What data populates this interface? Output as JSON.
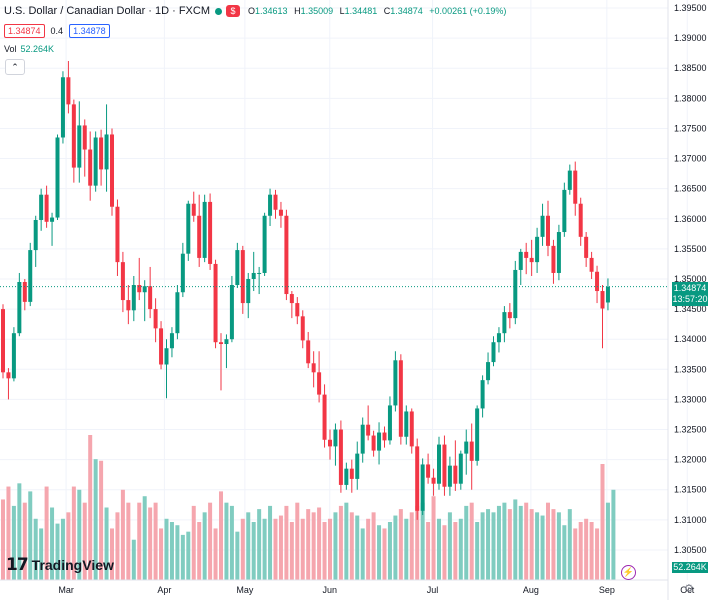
{
  "header": {
    "title": "U.S. Dollar / Canadian Dollar · 1D · FXCM",
    "open_label": "O",
    "open": "1.34613",
    "high_label": "H",
    "high": "1.35009",
    "low_label": "L",
    "low": "1.34481",
    "close_label": "C",
    "close": "1.34874",
    "change": "+0.00261 (+0.19%)",
    "flag": "$"
  },
  "quote": {
    "bid": "1.34874",
    "spread": "0.4",
    "ask": "1.34878"
  },
  "volume": {
    "label": "Vol",
    "value": "52.264K"
  },
  "last_price": {
    "price": "1.34874",
    "countdown": "13:57:20"
  },
  "brand": "TradingView",
  "colors": {
    "up": "#089981",
    "down": "#f23645",
    "vol_up": "#80ccc0",
    "vol_down": "#f5a6ae"
  },
  "chart_data": {
    "type": "candlestick",
    "title": "U.S. Dollar / Canadian Dollar · 1D · FXCM",
    "y_ticks": [
      "1.39500",
      "1.39000",
      "1.38500",
      "1.38000",
      "1.37500",
      "1.37000",
      "1.36500",
      "1.36000",
      "1.35500",
      "1.35000",
      "1.34500",
      "1.34000",
      "1.33500",
      "1.33000",
      "1.32500",
      "1.32000",
      "1.31500",
      "1.31000",
      "1.30500"
    ],
    "x_ticks": [
      "Mar",
      "Apr",
      "May",
      "Jun",
      "Jul",
      "Aug",
      "Sep",
      "Oct"
    ],
    "ylim": [
      1.303,
      1.396
    ],
    "last_price": 1.34874,
    "candles": [
      {
        "o": 1.345,
        "h": 1.3458,
        "l": 1.3335,
        "c": 1.3345
      },
      {
        "o": 1.3345,
        "h": 1.3352,
        "l": 1.33,
        "c": 1.3335
      },
      {
        "o": 1.3335,
        "h": 1.342,
        "l": 1.333,
        "c": 1.341
      },
      {
        "o": 1.341,
        "h": 1.351,
        "l": 1.3405,
        "c": 1.3495
      },
      {
        "o": 1.3495,
        "h": 1.35,
        "l": 1.3448,
        "c": 1.3462
      },
      {
        "o": 1.3462,
        "h": 1.356,
        "l": 1.3455,
        "c": 1.3548
      },
      {
        "o": 1.3548,
        "h": 1.3605,
        "l": 1.352,
        "c": 1.3598
      },
      {
        "o": 1.3598,
        "h": 1.365,
        "l": 1.358,
        "c": 1.364
      },
      {
        "o": 1.364,
        "h": 1.3655,
        "l": 1.3585,
        "c": 1.3595
      },
      {
        "o": 1.3595,
        "h": 1.361,
        "l": 1.3555,
        "c": 1.3602
      },
      {
        "o": 1.3602,
        "h": 1.374,
        "l": 1.3598,
        "c": 1.3735
      },
      {
        "o": 1.3735,
        "h": 1.3845,
        "l": 1.3725,
        "c": 1.3835
      },
      {
        "o": 1.3835,
        "h": 1.3862,
        "l": 1.3775,
        "c": 1.379
      },
      {
        "o": 1.379,
        "h": 1.3798,
        "l": 1.366,
        "c": 1.3685
      },
      {
        "o": 1.3685,
        "h": 1.3795,
        "l": 1.366,
        "c": 1.3755
      },
      {
        "o": 1.3755,
        "h": 1.3765,
        "l": 1.367,
        "c": 1.3715
      },
      {
        "o": 1.3715,
        "h": 1.3745,
        "l": 1.363,
        "c": 1.3655
      },
      {
        "o": 1.3655,
        "h": 1.3745,
        "l": 1.3645,
        "c": 1.3735
      },
      {
        "o": 1.3735,
        "h": 1.3748,
        "l": 1.3655,
        "c": 1.3682
      },
      {
        "o": 1.3682,
        "h": 1.379,
        "l": 1.3645,
        "c": 1.374
      },
      {
        "o": 1.374,
        "h": 1.375,
        "l": 1.3605,
        "c": 1.362
      },
      {
        "o": 1.362,
        "h": 1.3632,
        "l": 1.3505,
        "c": 1.3528
      },
      {
        "o": 1.3528,
        "h": 1.3545,
        "l": 1.3445,
        "c": 1.3465
      },
      {
        "o": 1.3465,
        "h": 1.349,
        "l": 1.3425,
        "c": 1.3448
      },
      {
        "o": 1.3448,
        "h": 1.3505,
        "l": 1.343,
        "c": 1.349
      },
      {
        "o": 1.349,
        "h": 1.3535,
        "l": 1.3465,
        "c": 1.3478
      },
      {
        "o": 1.3478,
        "h": 1.3498,
        "l": 1.343,
        "c": 1.3488
      },
      {
        "o": 1.3488,
        "h": 1.352,
        "l": 1.3435,
        "c": 1.345
      },
      {
        "o": 1.345,
        "h": 1.3468,
        "l": 1.3395,
        "c": 1.3418
      },
      {
        "o": 1.3418,
        "h": 1.343,
        "l": 1.335,
        "c": 1.3358
      },
      {
        "o": 1.3358,
        "h": 1.34,
        "l": 1.3302,
        "c": 1.3385
      },
      {
        "o": 1.3385,
        "h": 1.342,
        "l": 1.337,
        "c": 1.341
      },
      {
        "o": 1.341,
        "h": 1.349,
        "l": 1.34,
        "c": 1.3478
      },
      {
        "o": 1.3478,
        "h": 1.356,
        "l": 1.347,
        "c": 1.3542
      },
      {
        "o": 1.3542,
        "h": 1.363,
        "l": 1.353,
        "c": 1.3625
      },
      {
        "o": 1.3625,
        "h": 1.3645,
        "l": 1.3595,
        "c": 1.3605
      },
      {
        "o": 1.3605,
        "h": 1.364,
        "l": 1.352,
        "c": 1.3535
      },
      {
        "o": 1.3535,
        "h": 1.364,
        "l": 1.3528,
        "c": 1.3628
      },
      {
        "o": 1.3628,
        "h": 1.3642,
        "l": 1.3515,
        "c": 1.3525
      },
      {
        "o": 1.3525,
        "h": 1.3532,
        "l": 1.3385,
        "c": 1.3395
      },
      {
        "o": 1.3395,
        "h": 1.341,
        "l": 1.3315,
        "c": 1.3392
      },
      {
        "o": 1.3392,
        "h": 1.3408,
        "l": 1.3352,
        "c": 1.34
      },
      {
        "o": 1.34,
        "h": 1.3505,
        "l": 1.3395,
        "c": 1.349
      },
      {
        "o": 1.349,
        "h": 1.356,
        "l": 1.3485,
        "c": 1.3548
      },
      {
        "o": 1.3548,
        "h": 1.3555,
        "l": 1.3442,
        "c": 1.346
      },
      {
        "o": 1.346,
        "h": 1.351,
        "l": 1.3435,
        "c": 1.35
      },
      {
        "o": 1.35,
        "h": 1.3545,
        "l": 1.348,
        "c": 1.351
      },
      {
        "o": 1.351,
        "h": 1.352,
        "l": 1.3475,
        "c": 1.351
      },
      {
        "o": 1.351,
        "h": 1.361,
        "l": 1.3505,
        "c": 1.3605
      },
      {
        "o": 1.3605,
        "h": 1.365,
        "l": 1.3588,
        "c": 1.364
      },
      {
        "o": 1.364,
        "h": 1.3648,
        "l": 1.36,
        "c": 1.3615
      },
      {
        "o": 1.3615,
        "h": 1.3628,
        "l": 1.3585,
        "c": 1.3605
      },
      {
        "o": 1.3605,
        "h": 1.3615,
        "l": 1.3465,
        "c": 1.3475
      },
      {
        "o": 1.3475,
        "h": 1.348,
        "l": 1.3435,
        "c": 1.346
      },
      {
        "o": 1.346,
        "h": 1.347,
        "l": 1.3425,
        "c": 1.3438
      },
      {
        "o": 1.3438,
        "h": 1.3448,
        "l": 1.3385,
        "c": 1.3398
      },
      {
        "o": 1.3398,
        "h": 1.3412,
        "l": 1.3352,
        "c": 1.336
      },
      {
        "o": 1.336,
        "h": 1.338,
        "l": 1.332,
        "c": 1.3345
      },
      {
        "o": 1.3345,
        "h": 1.338,
        "l": 1.3295,
        "c": 1.3308
      },
      {
        "o": 1.3308,
        "h": 1.3325,
        "l": 1.322,
        "c": 1.3233
      },
      {
        "o": 1.3233,
        "h": 1.325,
        "l": 1.32,
        "c": 1.3222
      },
      {
        "o": 1.3222,
        "h": 1.326,
        "l": 1.319,
        "c": 1.325
      },
      {
        "o": 1.325,
        "h": 1.3265,
        "l": 1.3145,
        "c": 1.3158
      },
      {
        "o": 1.3158,
        "h": 1.3195,
        "l": 1.315,
        "c": 1.3185
      },
      {
        "o": 1.3185,
        "h": 1.32,
        "l": 1.3145,
        "c": 1.3168
      },
      {
        "o": 1.3168,
        "h": 1.323,
        "l": 1.315,
        "c": 1.321
      },
      {
        "o": 1.321,
        "h": 1.327,
        "l": 1.3195,
        "c": 1.3258
      },
      {
        "o": 1.3258,
        "h": 1.329,
        "l": 1.3232,
        "c": 1.324
      },
      {
        "o": 1.324,
        "h": 1.3248,
        "l": 1.3205,
        "c": 1.3215
      },
      {
        "o": 1.3215,
        "h": 1.3262,
        "l": 1.3192,
        "c": 1.3245
      },
      {
        "o": 1.3245,
        "h": 1.3255,
        "l": 1.322,
        "c": 1.3232
      },
      {
        "o": 1.3232,
        "h": 1.3305,
        "l": 1.3225,
        "c": 1.329
      },
      {
        "o": 1.329,
        "h": 1.338,
        "l": 1.328,
        "c": 1.3365
      },
      {
        "o": 1.3365,
        "h": 1.3375,
        "l": 1.3225,
        "c": 1.3238
      },
      {
        "o": 1.3238,
        "h": 1.329,
        "l": 1.3225,
        "c": 1.328
      },
      {
        "o": 1.328,
        "h": 1.3285,
        "l": 1.321,
        "c": 1.3222
      },
      {
        "o": 1.3222,
        "h": 1.3235,
        "l": 1.31,
        "c": 1.3115
      },
      {
        "o": 1.3115,
        "h": 1.3202,
        "l": 1.3108,
        "c": 1.3192
      },
      {
        "o": 1.3192,
        "h": 1.321,
        "l": 1.316,
        "c": 1.317
      },
      {
        "o": 1.317,
        "h": 1.3185,
        "l": 1.314,
        "c": 1.316
      },
      {
        "o": 1.316,
        "h": 1.3238,
        "l": 1.315,
        "c": 1.3225
      },
      {
        "o": 1.3225,
        "h": 1.324,
        "l": 1.314,
        "c": 1.3155
      },
      {
        "o": 1.3155,
        "h": 1.3205,
        "l": 1.314,
        "c": 1.319
      },
      {
        "o": 1.319,
        "h": 1.3232,
        "l": 1.3148,
        "c": 1.316
      },
      {
        "o": 1.316,
        "h": 1.3215,
        "l": 1.315,
        "c": 1.321
      },
      {
        "o": 1.321,
        "h": 1.325,
        "l": 1.3175,
        "c": 1.323
      },
      {
        "o": 1.323,
        "h": 1.326,
        "l": 1.315,
        "c": 1.3198
      },
      {
        "o": 1.3198,
        "h": 1.329,
        "l": 1.319,
        "c": 1.3285
      },
      {
        "o": 1.3285,
        "h": 1.334,
        "l": 1.327,
        "c": 1.3332
      },
      {
        "o": 1.3332,
        "h": 1.3378,
        "l": 1.3325,
        "c": 1.3362
      },
      {
        "o": 1.3362,
        "h": 1.3405,
        "l": 1.3355,
        "c": 1.3395
      },
      {
        "o": 1.3395,
        "h": 1.342,
        "l": 1.3378,
        "c": 1.341
      },
      {
        "o": 1.341,
        "h": 1.3455,
        "l": 1.3395,
        "c": 1.3445
      },
      {
        "o": 1.3445,
        "h": 1.346,
        "l": 1.3418,
        "c": 1.3435
      },
      {
        "o": 1.3435,
        "h": 1.353,
        "l": 1.3425,
        "c": 1.3515
      },
      {
        "o": 1.3515,
        "h": 1.355,
        "l": 1.349,
        "c": 1.3545
      },
      {
        "o": 1.3545,
        "h": 1.356,
        "l": 1.3508,
        "c": 1.3535
      },
      {
        "o": 1.3535,
        "h": 1.3565,
        "l": 1.3505,
        "c": 1.3528
      },
      {
        "o": 1.3528,
        "h": 1.3585,
        "l": 1.351,
        "c": 1.357
      },
      {
        "o": 1.357,
        "h": 1.3625,
        "l": 1.3555,
        "c": 1.3605
      },
      {
        "o": 1.3605,
        "h": 1.363,
        "l": 1.3538,
        "c": 1.3555
      },
      {
        "o": 1.3555,
        "h": 1.3565,
        "l": 1.3492,
        "c": 1.351
      },
      {
        "o": 1.351,
        "h": 1.359,
        "l": 1.3498,
        "c": 1.3578
      },
      {
        "o": 1.3578,
        "h": 1.366,
        "l": 1.357,
        "c": 1.3648
      },
      {
        "o": 1.3648,
        "h": 1.369,
        "l": 1.364,
        "c": 1.368
      },
      {
        "o": 1.368,
        "h": 1.3695,
        "l": 1.3605,
        "c": 1.3625
      },
      {
        "o": 1.3625,
        "h": 1.3635,
        "l": 1.3555,
        "c": 1.357
      },
      {
        "o": 1.357,
        "h": 1.3578,
        "l": 1.352,
        "c": 1.3535
      },
      {
        "o": 1.3535,
        "h": 1.3545,
        "l": 1.35,
        "c": 1.3512
      },
      {
        "o": 1.3512,
        "h": 1.3522,
        "l": 1.346,
        "c": 1.348
      },
      {
        "o": 1.348,
        "h": 1.349,
        "l": 1.3385,
        "c": 1.3451
      },
      {
        "o": 1.3461,
        "h": 1.3501,
        "l": 1.3448,
        "c": 1.3487
      }
    ],
    "volumes": [
      5.0,
      5.8,
      4.6,
      6.0,
      4.8,
      5.5,
      3.8,
      3.2,
      5.8,
      4.5,
      3.5,
      3.8,
      4.2,
      5.8,
      5.6,
      4.8,
      9.0,
      7.5,
      7.4,
      4.5,
      3.2,
      4.2,
      5.6,
      4.8,
      2.5,
      4.8,
      5.2,
      4.5,
      4.8,
      3.2,
      3.8,
      3.6,
      3.4,
      2.8,
      3.0,
      4.6,
      3.6,
      4.2,
      4.8,
      3.2,
      5.5,
      4.8,
      4.6,
      3.0,
      3.8,
      4.2,
      3.6,
      4.4,
      3.8,
      4.6,
      3.8,
      4.0,
      4.6,
      3.6,
      4.8,
      3.8,
      4.4,
      4.2,
      4.5,
      3.6,
      3.8,
      4.2,
      4.6,
      4.8,
      4.2,
      4.0,
      3.2,
      3.8,
      4.2,
      3.4,
      3.2,
      3.6,
      4.0,
      4.4,
      3.8,
      4.2,
      4.6,
      4.8,
      3.6,
      5.2,
      3.8,
      3.4,
      4.2,
      3.6,
      3.8,
      4.6,
      4.8,
      3.6,
      4.2,
      4.4,
      4.2,
      4.6,
      4.8,
      4.4,
      5.0,
      4.6,
      4.8,
      4.4,
      4.2,
      4.0,
      4.8,
      4.4,
      4.2,
      3.4,
      4.4,
      3.2,
      3.6,
      3.8,
      3.6,
      3.2,
      7.2,
      4.8,
      5.6
    ]
  }
}
